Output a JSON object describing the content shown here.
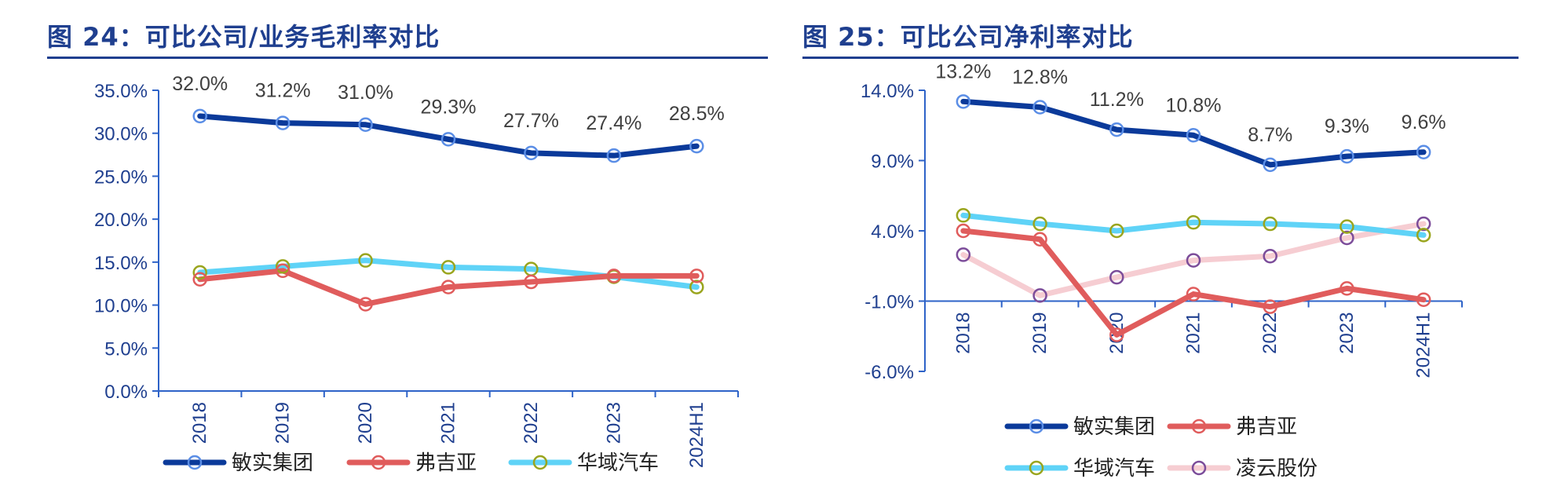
{
  "colors": {
    "title": "#1f3f8f",
    "axis": "#2e63c8",
    "tick": "#1f3f8f",
    "minshi": "#0b3a9a",
    "faurecia": "#e05c5c",
    "huayu": "#5fd3f7",
    "lingyun": "#f6cdd2"
  },
  "left": {
    "title": "图 24：可比公司/业务毛利率对比",
    "chart_data": {
      "type": "line",
      "title": "可比公司/业务毛利率对比",
      "categories": [
        "2018",
        "2019",
        "2020",
        "2021",
        "2022",
        "2023",
        "2024H1"
      ],
      "ylim": [
        0,
        35
      ],
      "yticks": [
        0,
        5,
        10,
        15,
        20,
        25,
        30,
        35
      ],
      "ytick_labels": [
        "0.0%",
        "5.0%",
        "10.0%",
        "15.0%",
        "20.0%",
        "25.0%",
        "30.0%",
        "35.0%"
      ],
      "series": [
        {
          "name": "敏实集团",
          "key": "minshi",
          "values": [
            32.0,
            31.2,
            31.0,
            29.3,
            27.7,
            27.4,
            28.5
          ],
          "labels": [
            "32.0%",
            "31.2%",
            "31.0%",
            "29.3%",
            "27.7%",
            "27.4%",
            "28.5%"
          ]
        },
        {
          "name": "弗吉亚",
          "key": "faurecia",
          "values": [
            13.0,
            14.0,
            10.1,
            12.1,
            12.7,
            13.4,
            13.4
          ]
        },
        {
          "name": "华域汽车",
          "key": "huayu",
          "values": [
            13.8,
            14.5,
            15.2,
            14.4,
            14.2,
            13.3,
            12.1
          ]
        }
      ],
      "legend": [
        "敏实集团",
        "弗吉亚",
        "华域汽车"
      ]
    }
  },
  "right": {
    "title": "图 25：可比公司净利率对比",
    "chart_data": {
      "type": "line",
      "title": "可比公司净利率对比",
      "categories": [
        "2018",
        "2019",
        "2020",
        "2021",
        "2022",
        "2023",
        "2024H1"
      ],
      "ylim": [
        -6,
        14
      ],
      "yticks": [
        -6,
        -1,
        4,
        9,
        14
      ],
      "ytick_labels": [
        "-6.0%",
        "-1.0%",
        "4.0%",
        "9.0%",
        "14.0%"
      ],
      "series": [
        {
          "name": "敏实集团",
          "key": "minshi",
          "values": [
            13.2,
            12.8,
            11.2,
            10.8,
            8.7,
            9.3,
            9.6
          ],
          "labels": [
            "13.2%",
            "12.8%",
            "11.2%",
            "10.8%",
            "8.7%",
            "9.3%",
            "9.6%"
          ]
        },
        {
          "name": "弗吉亚",
          "key": "faurecia",
          "values": [
            4.0,
            3.4,
            -3.4,
            -0.5,
            -1.4,
            -0.1,
            -0.9
          ]
        },
        {
          "name": "华域汽车",
          "key": "huayu",
          "values": [
            5.1,
            4.5,
            4.0,
            4.6,
            4.5,
            4.3,
            3.7
          ]
        },
        {
          "name": "凌云股份",
          "key": "lingyun",
          "values": [
            2.3,
            -0.6,
            0.7,
            1.9,
            2.2,
            3.5,
            4.5
          ]
        }
      ],
      "legend": [
        "敏实集团",
        "弗吉亚",
        "华域汽车",
        "凌云股份"
      ]
    }
  }
}
